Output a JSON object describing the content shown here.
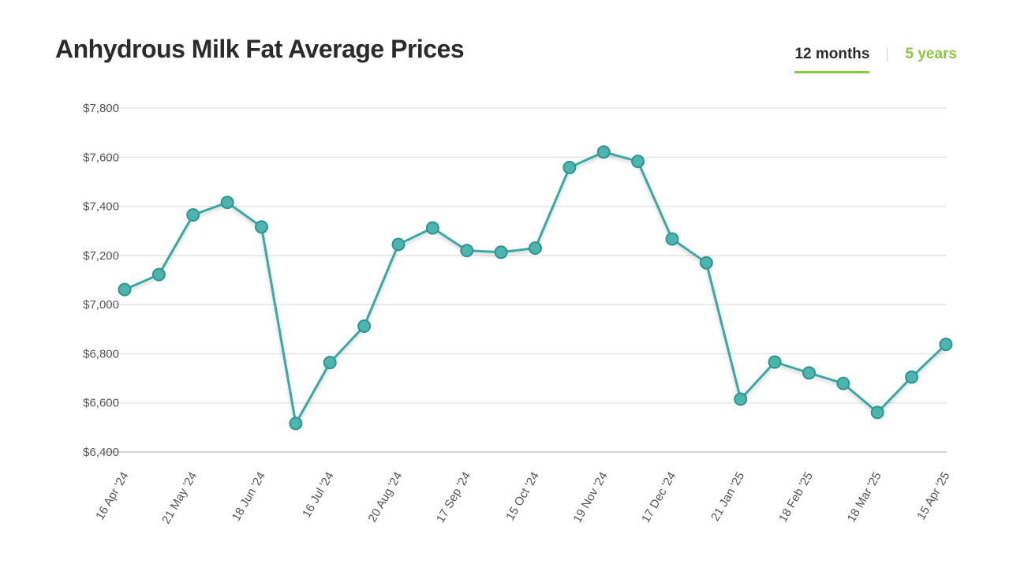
{
  "header": {
    "title": "Anhydrous Milk Fat Average Prices",
    "tabs": [
      {
        "label": "12 months",
        "active": true
      },
      {
        "label": "5 years",
        "active": false
      }
    ]
  },
  "colors": {
    "line": "#3aa8a3",
    "marker_fill": "#4bb5ae",
    "marker_stroke": "#2e9590",
    "accent": "#8dc63f",
    "grid": "#e6e6e6"
  },
  "chart_data": {
    "type": "line",
    "title": "Anhydrous Milk Fat Average Prices",
    "xlabel": "",
    "ylabel": "",
    "ylim": [
      6400,
      7800
    ],
    "y_ticks": [
      7800,
      7600,
      7400,
      7200,
      7000,
      6800,
      6600,
      6400
    ],
    "y_tick_labels": [
      "$7,800",
      "$7,600",
      "$7,400",
      "$7,200",
      "$7,000",
      "$6,800",
      "$6,600",
      "$6,400"
    ],
    "x_tick_labels": [
      "16 Apr '24",
      "21 May '24",
      "18 Jun '24",
      "16 Jul '24",
      "20 Aug '24",
      "17 Sep '24",
      "15 Oct '24",
      "19 Nov '24",
      "17 Dec '24",
      "21 Jan '25",
      "18 Feb '25",
      "18 Mar '25",
      "15 Apr '25"
    ],
    "x_tick_point_index": [
      0,
      2,
      4,
      6,
      8,
      10,
      12,
      14,
      16,
      18,
      20,
      22,
      24
    ],
    "grid": true,
    "legend": "none",
    "values": [
      7061,
      7122,
      7365,
      7416,
      7316,
      6516,
      6764,
      6912,
      7245,
      7312,
      7220,
      7213,
      7230,
      7558,
      7621,
      7583,
      7267,
      7170,
      6615,
      6766,
      6722,
      6679,
      6561,
      6705,
      6838
    ]
  }
}
